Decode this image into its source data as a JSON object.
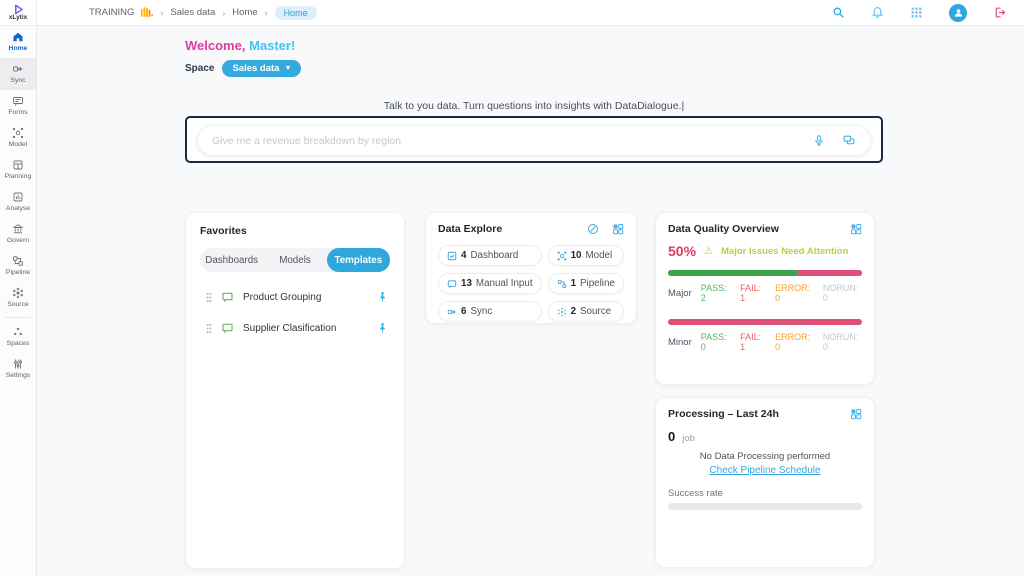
{
  "brand": {
    "name": "xLytix"
  },
  "topbar": {
    "breadcrumb": [
      {
        "label": "TRAINING"
      },
      {
        "label": "Sales data"
      },
      {
        "label": "Home"
      },
      {
        "label": "Home",
        "current": true
      }
    ],
    "separator": "›",
    "icons": [
      "search-icon",
      "bell-icon",
      "apps-grid-icon",
      "avatar",
      "logout-icon"
    ]
  },
  "sidebar": {
    "items": [
      {
        "label": "Home",
        "icon": "home-icon",
        "active": true
      },
      {
        "label": "Sync",
        "icon": "sync-icon"
      },
      {
        "label": "Forms",
        "icon": "forms-icon"
      },
      {
        "label": "Model",
        "icon": "model-icon"
      },
      {
        "label": "Planning",
        "icon": "planning-icon"
      },
      {
        "label": "Analyse",
        "icon": "analyse-icon"
      },
      {
        "label": "Govern",
        "icon": "govern-icon"
      },
      {
        "label": "Pipeline",
        "icon": "pipeline-icon"
      },
      {
        "label": "Source",
        "icon": "source-icon"
      },
      {
        "label": "Spaces",
        "icon": "spaces-icon"
      },
      {
        "label": "Settings",
        "icon": "settings-icon"
      }
    ]
  },
  "welcome": {
    "prefix": "Welcome,",
    "name": " Master!"
  },
  "space": {
    "label": "Space",
    "selected": "Sales data",
    "caret": "▼"
  },
  "dialogue": {
    "tagline": "Talk to you data. Turn questions into insights with DataDialogue.",
    "cursor": "|",
    "placeholder": "Give me a revenue breakdown by region"
  },
  "favorites": {
    "title": "Favorites",
    "tabs": [
      {
        "label": "Dashboards",
        "active": false
      },
      {
        "label": "Models",
        "active": false
      },
      {
        "label": "Templates",
        "active": true
      }
    ],
    "items": [
      {
        "label": "Product Grouping"
      },
      {
        "label": "Supplier Clasification"
      }
    ]
  },
  "data_explore": {
    "title": "Data Explore",
    "tiles": [
      {
        "count": "4",
        "label": "Dashboard",
        "icon": "dashboard-icon"
      },
      {
        "count": "10",
        "label": "Model",
        "icon": "model-icon"
      },
      {
        "count": "13",
        "label": "Manual Input",
        "icon": "manual-input-icon"
      },
      {
        "count": "1",
        "label": "Pipeline",
        "icon": "pipeline-icon"
      },
      {
        "count": "6",
        "label": "Sync",
        "icon": "sync-icon"
      },
      {
        "count": "2",
        "label": "Source",
        "icon": "source-icon"
      }
    ]
  },
  "data_quality": {
    "title": "Data Quality Overview",
    "score": "50%",
    "warning_glyph": "⚠",
    "alert": "Major Issues Need Attention",
    "rows": [
      {
        "name": "Major",
        "green_pct": 66.7,
        "stats": [
          "PASS: 2",
          "FAIL: 1",
          "ERROR: 0",
          "NORUN: 0"
        ]
      },
      {
        "name": "Minor",
        "green_pct": 0,
        "stats": [
          "PASS: 0",
          "FAIL: 1",
          "ERROR: 0",
          "NORUN: 0"
        ]
      }
    ]
  },
  "processing": {
    "title": "Processing – Last 24h",
    "count": "0",
    "unit": "job",
    "empty_text": "No Data Processing performed",
    "link_text": "Check Pipeline Schedule",
    "success_label": "Success rate"
  },
  "colors": {
    "accent_blue": "#2ea7dc",
    "pink": "#e5399f",
    "cyan": "#40c4f3",
    "crimson": "#e23a62",
    "bar_green": "#3ba44a",
    "bar_pink": "#df5078",
    "warning_yellow_green": "#c0cc44",
    "pass_green": "#54b561",
    "fail_red": "#ed6161",
    "error_orange": "#f6a12f",
    "norun_gray": "#c3c6cb"
  }
}
